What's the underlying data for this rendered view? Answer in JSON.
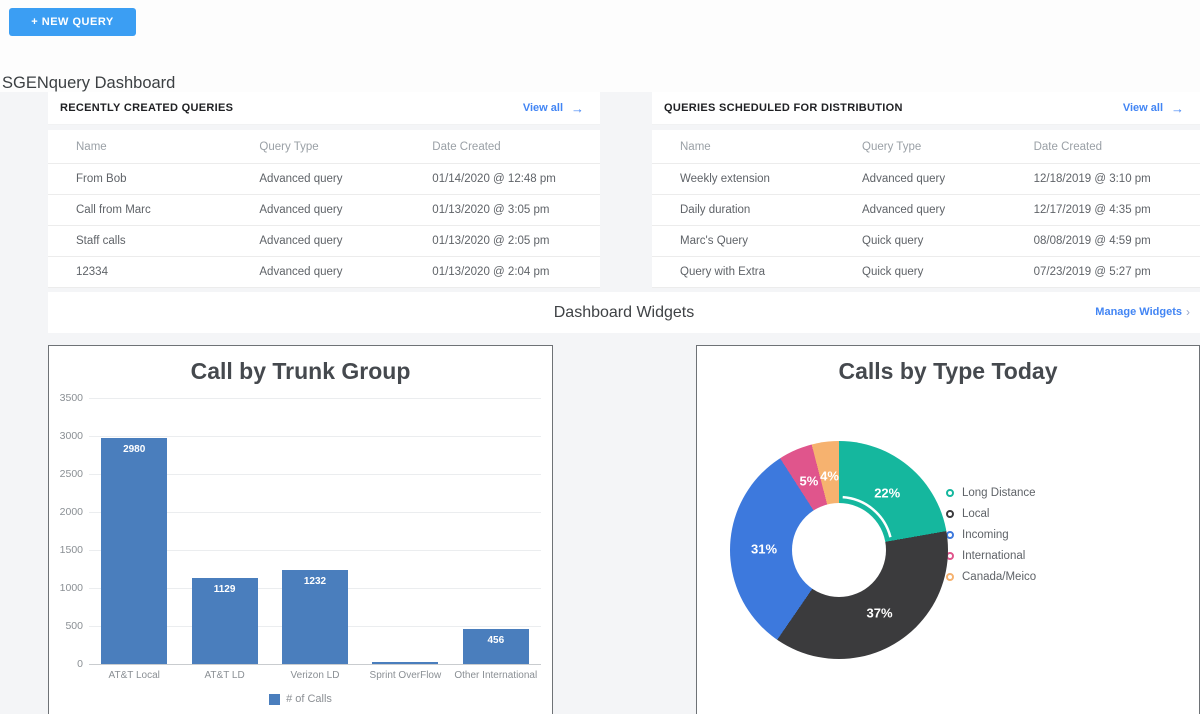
{
  "header": {
    "new_query_label": "+ NEW QUERY"
  },
  "page_title": "SGENquery Dashboard",
  "panels": [
    {
      "title": "RECENTLY CREATED QUERIES",
      "view_all_label": "View all",
      "arrow": "→",
      "columns": [
        "Name",
        "Query Type",
        "Date Created"
      ],
      "rows": [
        [
          "From Bob",
          "Advanced query",
          "01/14/2020 @ 12:48 pm"
        ],
        [
          "Call from Marc",
          "Advanced query",
          "01/13/2020 @ 3:05 pm"
        ],
        [
          "Staff calls",
          "Advanced query",
          "01/13/2020 @ 2:05 pm"
        ],
        [
          "12334",
          "Advanced query",
          "01/13/2020 @ 2:04 pm"
        ]
      ]
    },
    {
      "title": "QUERIES SCHEDULED FOR DISTRIBUTION",
      "view_all_label": "View all",
      "arrow": "→",
      "columns": [
        "Name",
        "Query Type",
        "Date Created"
      ],
      "rows": [
        [
          "Weekly extension",
          "Advanced query",
          "12/18/2019 @ 3:10 pm"
        ],
        [
          "Daily duration",
          "Advanced query",
          "12/17/2019 @ 4:35 pm"
        ],
        [
          "Marc's Query",
          "Quick query",
          "08/08/2019 @ 4:59 pm"
        ],
        [
          "Query with Extra",
          "Quick query",
          "07/23/2019 @ 5:27 pm"
        ]
      ]
    }
  ],
  "widgets_band": {
    "title": "Dashboard Widgets",
    "manage_label": "Manage Widgets",
    "chevron": "›"
  },
  "colors": {
    "button_blue": "#3b9ef3",
    "link_blue": "#4285f4",
    "bar_blue": "#4a7ebd"
  },
  "chart_data": [
    {
      "type": "bar",
      "title": "Call by Trunk Group",
      "categories": [
        "AT&T Local",
        "AT&T LD",
        "Verizon LD",
        "Sprint OverFlow",
        "Other International"
      ],
      "values": [
        2980,
        1129,
        1232,
        20,
        456
      ],
      "value_labels": [
        "2980",
        "1129",
        "1232",
        "",
        "456"
      ],
      "ylim": [
        0,
        3500
      ],
      "ytick_step": 500,
      "grid": true,
      "legend_label": "# of Calls",
      "bar_color": "#4a7ebd",
      "legend_position": "bottom"
    },
    {
      "type": "pie",
      "title": "Calls by Type Today",
      "labels": [
        "Long Distance",
        "Local",
        "Incoming",
        "International",
        "Canada/Meico"
      ],
      "values": [
        22,
        37,
        31,
        5,
        4
      ],
      "percent_labels": [
        "22%",
        "37%",
        "31%",
        "5%",
        "4%"
      ],
      "colors": [
        "#15b79e",
        "#3b3b3d",
        "#3d79dd",
        "#e0558c",
        "#f6b26f"
      ],
      "donut": true,
      "selected_index": 0,
      "legend_position": "right"
    }
  ]
}
